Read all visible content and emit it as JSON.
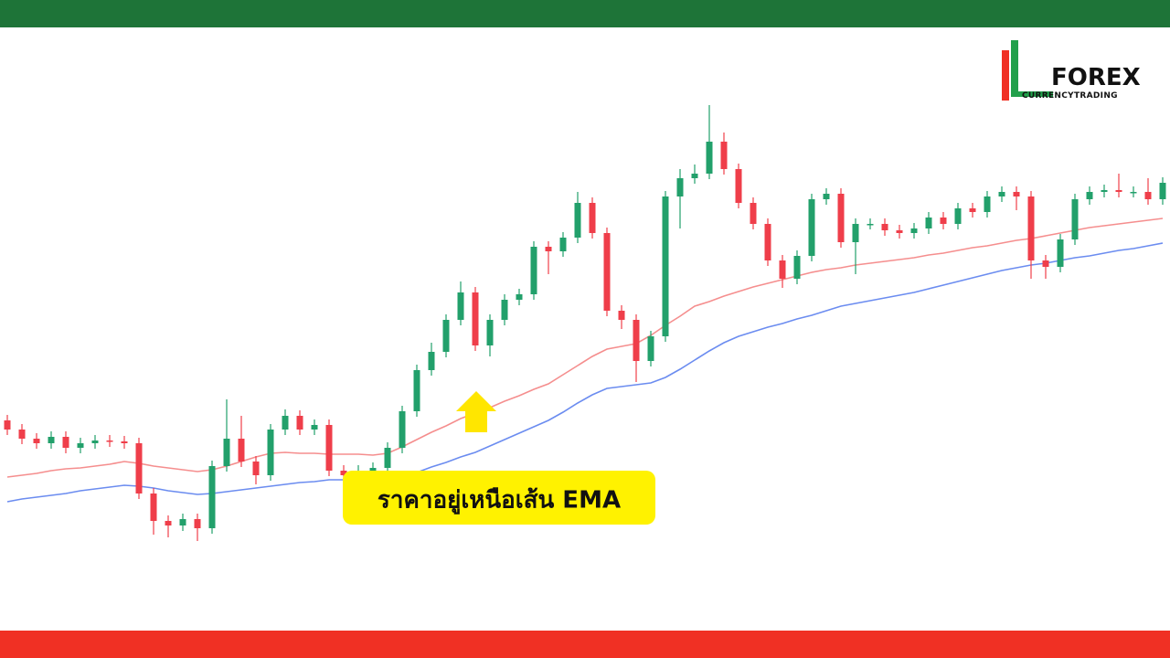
{
  "logo": {
    "title": "FOREX",
    "subtitle": "CURRENCYTRADING"
  },
  "chart_data": {
    "type": "candlestick",
    "annotation": "ราคาอยู่เหนือเส้น EMA",
    "ylim": [
      0,
      720
    ],
    "up_color": "#22a06b",
    "down_color": "#ef3e4a",
    "open": [
      260,
      250,
      240,
      235,
      242,
      230,
      235,
      238,
      237,
      235,
      180,
      150,
      145,
      152,
      142,
      210,
      240,
      215,
      200,
      250,
      265,
      250,
      255,
      205,
      200,
      205,
      208,
      230,
      270,
      315,
      335,
      370,
      400,
      342,
      370,
      392,
      398,
      450,
      445,
      460,
      498,
      465,
      380,
      370,
      325,
      352,
      505,
      525,
      530,
      565,
      535,
      498,
      475,
      435,
      415,
      440,
      502,
      508,
      455,
      475,
      475,
      468,
      465,
      470,
      482,
      475,
      492,
      488,
      505,
      510,
      505,
      435,
      428,
      458,
      502,
      510,
      512,
      510,
      510,
      502
    ],
    "high": [
      266,
      256,
      246,
      248,
      248,
      241,
      244,
      244,
      243,
      241,
      186,
      156,
      158,
      158,
      216,
      283,
      265,
      221,
      256,
      272,
      271,
      261,
      261,
      211,
      211,
      214,
      236,
      276,
      321,
      345,
      376,
      412,
      406,
      376,
      398,
      404,
      456,
      456,
      466,
      510,
      504,
      471,
      386,
      376,
      358,
      511,
      535,
      540,
      605,
      575,
      541,
      504,
      481,
      441,
      446,
      508,
      514,
      514,
      481,
      481,
      481,
      474,
      476,
      488,
      488,
      498,
      498,
      511,
      516,
      516,
      511,
      441,
      464,
      508,
      516,
      518,
      530,
      516,
      525,
      526
    ],
    "low": [
      244,
      234,
      229,
      229,
      224,
      224,
      229,
      231,
      229,
      174,
      135,
      132,
      139,
      128,
      136,
      204,
      209,
      190,
      194,
      244,
      244,
      244,
      199,
      186,
      194,
      199,
      202,
      224,
      264,
      309,
      329,
      364,
      336,
      330,
      364,
      386,
      392,
      420,
      439,
      454,
      459,
      374,
      360,
      302,
      319,
      346,
      470,
      519,
      524,
      529,
      492,
      469,
      429,
      405,
      409,
      434,
      496,
      449,
      420,
      469,
      462,
      459,
      459,
      464,
      469,
      469,
      482,
      482,
      499,
      490,
      415,
      415,
      422,
      452,
      496,
      504,
      504,
      504,
      496,
      496
    ],
    "close": [
      250,
      240,
      235,
      242,
      230,
      235,
      238,
      237,
      235,
      180,
      150,
      145,
      152,
      142,
      210,
      240,
      215,
      200,
      250,
      265,
      250,
      255,
      205,
      200,
      205,
      208,
      230,
      270,
      315,
      335,
      370,
      400,
      342,
      370,
      392,
      398,
      450,
      445,
      460,
      498,
      465,
      380,
      370,
      325,
      352,
      505,
      525,
      530,
      565,
      535,
      498,
      475,
      435,
      415,
      440,
      502,
      508,
      455,
      475,
      475,
      468,
      465,
      470,
      482,
      475,
      492,
      488,
      505,
      510,
      505,
      435,
      428,
      458,
      502,
      510,
      512,
      510,
      510,
      502,
      520
    ],
    "ema": [
      {
        "color": "#f58e8e",
        "values": [
          198,
          200,
          202,
          205,
          207,
          208,
          210,
          212,
          215,
          213,
          210,
          208,
          206,
          204,
          206,
          210,
          215,
          220,
          224,
          225,
          224,
          224,
          223,
          223,
          223,
          222,
          224,
          231,
          239,
          247,
          254,
          262,
          268,
          274,
          281,
          287,
          294,
          300,
          310,
          320,
          330,
          338,
          341,
          344,
          353,
          364,
          374,
          385,
          390,
          396,
          401,
          406,
          410,
          414,
          418,
          422,
          425,
          427,
          430,
          432,
          434,
          436,
          438,
          441,
          443,
          446,
          449,
          451,
          454,
          457,
          459,
          462,
          465,
          468,
          471,
          473,
          475,
          477,
          479,
          481
        ]
      },
      {
        "color": "#6b8cf0",
        "values": [
          171,
          174,
          176,
          178,
          180,
          183,
          185,
          187,
          189,
          188,
          186,
          183,
          181,
          179,
          180,
          182,
          184,
          186,
          188,
          190,
          192,
          193,
          195,
          195,
          196,
          197,
          197,
          198,
          203,
          209,
          214,
          220,
          225,
          232,
          239,
          246,
          253,
          260,
          269,
          279,
          288,
          295,
          297,
          299,
          301,
          307,
          316,
          326,
          336,
          345,
          352,
          357,
          362,
          366,
          371,
          375,
          380,
          385,
          388,
          391,
          394,
          397,
          400,
          404,
          408,
          412,
          416,
          420,
          424,
          427,
          430,
          432,
          435,
          438,
          440,
          443,
          446,
          448,
          451,
          454
        ]
      }
    ]
  }
}
